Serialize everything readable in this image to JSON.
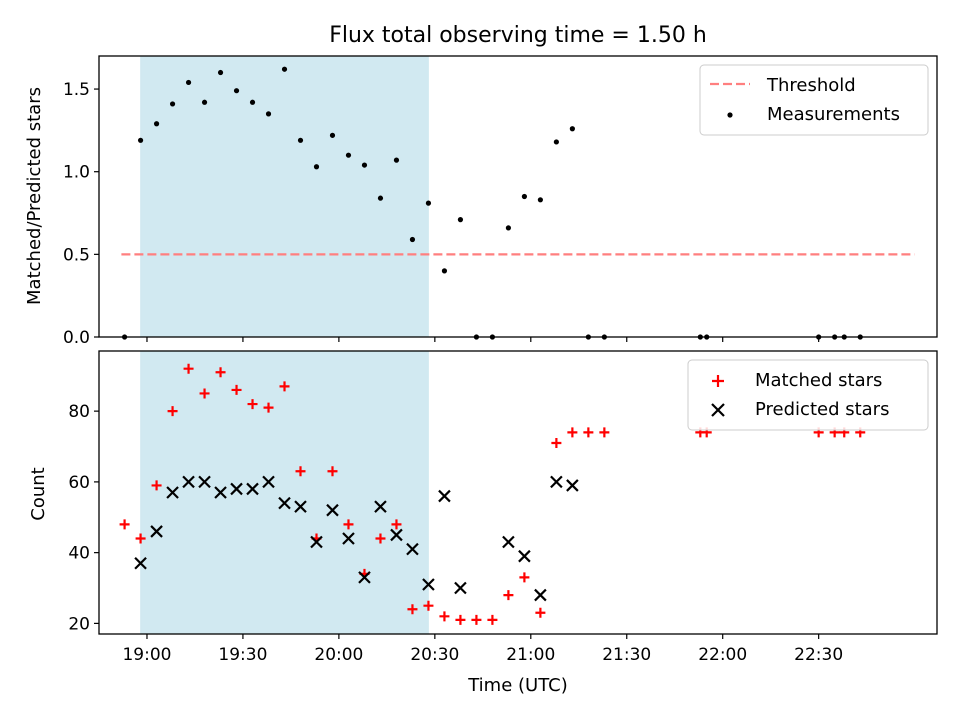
{
  "chart_data": [
    {
      "type": "scatter",
      "title": "Flux total observing time = 1.50 h",
      "ylabel": "Matched/Predicted stars",
      "ylim": [
        0,
        1.7
      ],
      "yticks": [
        0.0,
        0.5,
        1.0,
        1.5
      ],
      "ytick_labels": [
        "0.0",
        "0.5",
        "1.0",
        "1.5"
      ],
      "xlim": [
        "18:45",
        "23:07"
      ],
      "xticks": [
        "19:00",
        "19:30",
        "20:00",
        "20:30",
        "21:00",
        "21:30",
        "22:00",
        "22:30"
      ],
      "highlight_span": {
        "x0": "18:58",
        "x1": "20:28",
        "color": "#add8e6"
      },
      "threshold": {
        "name": "Threshold",
        "value": 0.5,
        "x0": "18:52",
        "x1": "23:00",
        "color": "#ff7f7f"
      },
      "legend_position": "upper-right",
      "series": [
        {
          "name": "Measurements",
          "marker": "dot",
          "color": "#000000",
          "x": [
            "18:53",
            "18:58",
            "19:03",
            "19:08",
            "19:13",
            "19:18",
            "19:23",
            "19:28",
            "19:33",
            "19:38",
            "19:43",
            "19:48",
            "19:53",
            "19:58",
            "20:03",
            "20:08",
            "20:13",
            "20:18",
            "20:23",
            "20:28",
            "20:33",
            "20:38",
            "20:43",
            "20:48",
            "20:53",
            "20:58",
            "21:03",
            "21:08",
            "21:13",
            "21:18",
            "21:23",
            "21:53",
            "21:55",
            "22:30",
            "22:35",
            "22:38",
            "22:43"
          ],
          "y": [
            0.0,
            1.19,
            1.29,
            1.41,
            1.54,
            1.42,
            1.6,
            1.49,
            1.42,
            1.35,
            1.62,
            1.19,
            1.03,
            1.22,
            1.1,
            1.04,
            0.84,
            1.07,
            0.59,
            0.81,
            0.4,
            0.71,
            0.0,
            0.0,
            0.66,
            0.85,
            0.83,
            1.18,
            1.26,
            0.0,
            0.0,
            0.0,
            0.0,
            0.0,
            0.0,
            0.0,
            0.0
          ]
        }
      ]
    },
    {
      "type": "scatter",
      "xlabel": "Time (UTC)",
      "ylabel": "Count",
      "ylim": [
        17,
        97
      ],
      "yticks": [
        20,
        40,
        60,
        80
      ],
      "ytick_labels": [
        "20",
        "40",
        "60",
        "80"
      ],
      "xlim": [
        "18:45",
        "23:07"
      ],
      "xticks": [
        "19:00",
        "19:30",
        "20:00",
        "20:30",
        "21:00",
        "21:30",
        "22:00",
        "22:30"
      ],
      "xtick_labels": [
        "19:00",
        "19:30",
        "20:00",
        "20:30",
        "21:00",
        "21:30",
        "22:00",
        "22:30"
      ],
      "highlight_span": {
        "x0": "18:58",
        "x1": "20:28",
        "color": "#add8e6"
      },
      "legend_position": "upper-right",
      "series": [
        {
          "name": "Matched stars",
          "marker": "plus",
          "color": "#ff0000",
          "x": [
            "18:53",
            "18:58",
            "19:03",
            "19:08",
            "19:13",
            "19:18",
            "19:23",
            "19:28",
            "19:33",
            "19:38",
            "19:43",
            "19:48",
            "19:53",
            "19:58",
            "20:03",
            "20:08",
            "20:13",
            "20:18",
            "20:23",
            "20:28",
            "20:33",
            "20:38",
            "20:43",
            "20:48",
            "20:53",
            "20:58",
            "21:03",
            "21:08",
            "21:13",
            "21:18",
            "21:23",
            "21:53",
            "21:55",
            "22:30",
            "22:35",
            "22:38",
            "22:43"
          ],
          "y": [
            48,
            44,
            59,
            80,
            92,
            85,
            91,
            86,
            82,
            81,
            87,
            63,
            44,
            63,
            48,
            34,
            44,
            48,
            24,
            25,
            22,
            21,
            21,
            21,
            28,
            33,
            23,
            71,
            74,
            74,
            74,
            74,
            74,
            74,
            74,
            74,
            74
          ]
        },
        {
          "name": "Predicted stars",
          "marker": "x",
          "color": "#000000",
          "x": [
            "18:58",
            "19:03",
            "19:08",
            "19:13",
            "19:18",
            "19:23",
            "19:28",
            "19:33",
            "19:38",
            "19:43",
            "19:48",
            "19:53",
            "19:58",
            "20:03",
            "20:08",
            "20:13",
            "20:18",
            "20:23",
            "20:28",
            "20:33",
            "20:38",
            "20:53",
            "20:58",
            "21:03",
            "21:08",
            "21:13"
          ],
          "y": [
            37,
            46,
            57,
            60,
            60,
            57,
            58,
            58,
            60,
            54,
            53,
            43,
            52,
            44,
            33,
            53,
            45,
            41,
            31,
            56,
            30,
            43,
            39,
            28,
            60,
            59
          ]
        }
      ]
    }
  ]
}
